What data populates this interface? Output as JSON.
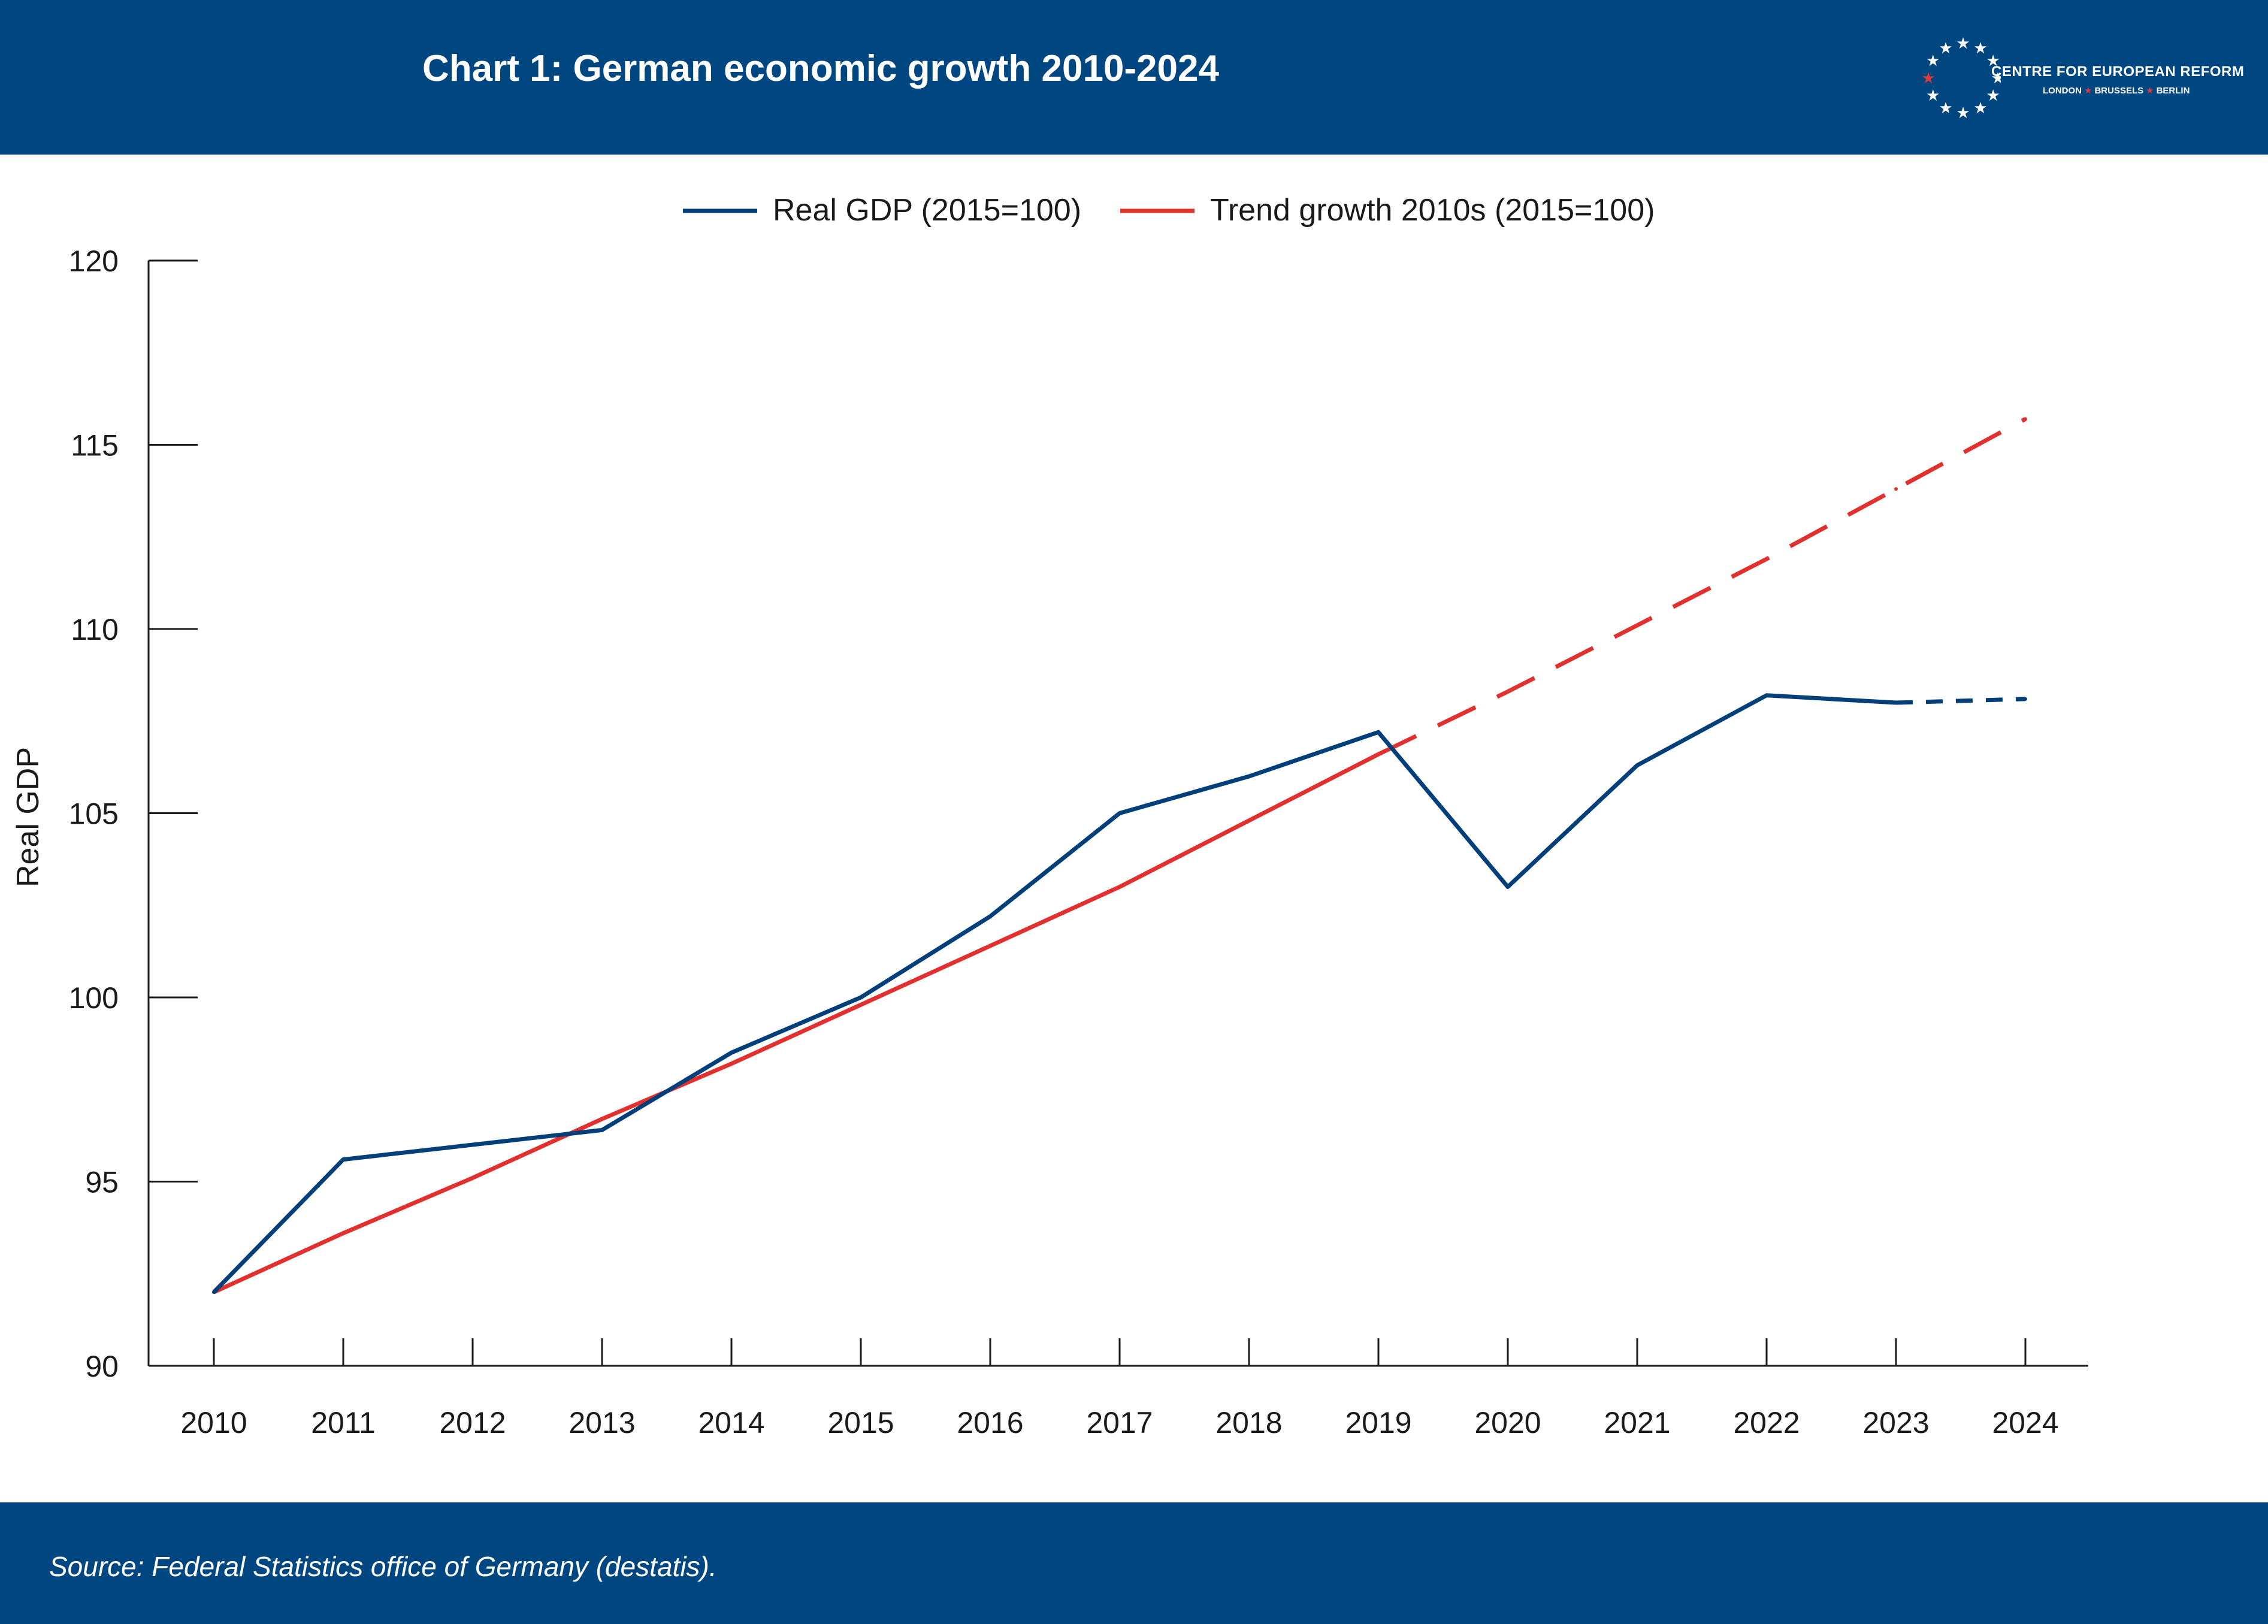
{
  "header": {
    "title": "Chart 1: German economic growth 2010-2024",
    "org_name": "CENTRE FOR EUROPEAN REFORM",
    "org_cities": [
      "LONDON",
      "BRUSSELS",
      "BERLIN"
    ]
  },
  "footer": {
    "source": "Source: Federal Statistics office of Germany (destatis)."
  },
  "colors": {
    "brand_navy": "#004781",
    "series_gdp": "#003f7a",
    "series_trend": "#e1302e",
    "accent_red": "#e03a3e"
  },
  "chart_data": {
    "type": "line",
    "title": "",
    "ylabel": "Real GDP",
    "xlabel": "",
    "ylim": [
      90,
      120
    ],
    "yticks": [
      "90",
      "95",
      "100",
      "105",
      "110",
      "115",
      "120"
    ],
    "x": [
      "2010",
      "2011",
      "2012",
      "2013",
      "2014",
      "2015",
      "2016",
      "2017",
      "2018",
      "2019",
      "2020",
      "2021",
      "2022",
      "2023",
      "2024"
    ],
    "legend_position": "top-center",
    "grid": false,
    "series": [
      {
        "name": "Real GDP (2015=100)",
        "values": [
          92.0,
          95.6,
          96.0,
          96.4,
          98.5,
          100.0,
          102.2,
          105.0,
          106.0,
          107.2,
          103.0,
          106.3,
          108.2,
          108.0,
          108.1
        ],
        "dashed_from": "2023"
      },
      {
        "name": "Trend growth 2010s (2015=100)",
        "values": [
          92.0,
          93.6,
          95.1,
          96.7,
          98.2,
          99.8,
          101.4,
          103.0,
          104.8,
          106.6,
          108.3,
          110.1,
          111.9,
          113.8,
          115.7
        ],
        "dashed_from": "2019"
      }
    ]
  }
}
